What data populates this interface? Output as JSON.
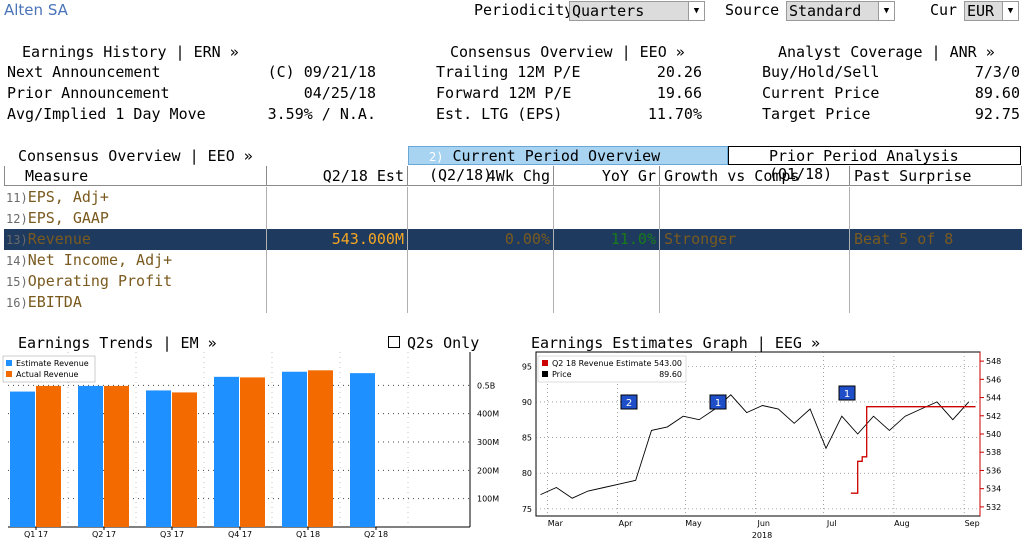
{
  "header": {
    "company": "Alten SA",
    "periodicity_label": "Periodicity",
    "periodicity_value": "Quarters",
    "source_label": "Source",
    "source_value": "Standard",
    "cur_label": "Cur",
    "cur_value": "EUR"
  },
  "earnings_history": {
    "title": "Earnings History | ERN »",
    "rows": [
      {
        "label": "Next Announcement",
        "value": "(C) 09/21/18"
      },
      {
        "label": "Prior Announcement",
        "value": "04/25/18"
      },
      {
        "label": "Avg/Implied 1 Day Move",
        "value": "3.59% / N.A."
      }
    ]
  },
  "consensus_top": {
    "title": "Consensus Overview | EEO »",
    "rows": [
      {
        "label": "Trailing 12M P/E",
        "value": "20.26"
      },
      {
        "label": "Forward 12M P/E",
        "value": "19.66"
      },
      {
        "label": "Est. LTG (EPS)",
        "value": "11.70%"
      }
    ]
  },
  "analyst": {
    "title": "Analyst Coverage | ANR »",
    "rows": [
      {
        "label": "Buy/Hold/Sell",
        "value": "7/3/0"
      },
      {
        "label": "Current Price",
        "value": "89.60"
      },
      {
        "label": "Target Price",
        "value": "92.75"
      }
    ]
  },
  "tabs": {
    "left_title": "Consensus Overview | EEO »",
    "current_num": "2)",
    "current_label": "Current Period Overview (Q2/18)",
    "prior_label": "Prior Period Analysis (Q1/18)"
  },
  "table": {
    "headers": [
      "Measure",
      "Q2/18 Est",
      "4Wk Chg",
      "YoY Gr",
      "Growth vs Comps",
      "Past Surprise"
    ],
    "rows": [
      {
        "num": "11)",
        "label": "EPS, Adj+",
        "est": "",
        "chg": "",
        "yoy": "",
        "comps": "",
        "surprise": ""
      },
      {
        "num": "12)",
        "label": "EPS, GAAP",
        "est": "",
        "chg": "",
        "yoy": "",
        "comps": "",
        "surprise": ""
      },
      {
        "num": "13)",
        "label": "Revenue",
        "est": "543.000M",
        "chg": "0.00%",
        "yoy": "11.0%",
        "comps": "Stronger",
        "surprise": "Beat 5 of 8"
      },
      {
        "num": "14)",
        "label": "Net Income, Adj+",
        "est": "",
        "chg": "",
        "yoy": "",
        "comps": "",
        "surprise": ""
      },
      {
        "num": "15)",
        "label": "Operating Profit",
        "est": "",
        "chg": "",
        "yoy": "",
        "comps": "",
        "surprise": ""
      },
      {
        "num": "16)",
        "label": "EBITDA",
        "est": "",
        "chg": "",
        "yoy": "",
        "comps": "",
        "surprise": ""
      }
    ]
  },
  "trends": {
    "title": "Earnings Trends | EM »",
    "q2_only_label": "Q2s Only",
    "legend": [
      "Estimate Revenue",
      "Actual Revenue"
    ]
  },
  "graph": {
    "title": "Earnings Estimates Graph | EEG »",
    "legend": [
      {
        "label": "Q2 18 Revenue Estimate",
        "value": "543.00"
      },
      {
        "label": "Price",
        "value": "89.60"
      }
    ],
    "year_label": "2018",
    "badges": [
      "2",
      "1",
      "1"
    ]
  },
  "colors": {
    "estimate": "#1e90ff",
    "actual": "#f26a00",
    "price_line": "#000000",
    "revenue_line": "#cc0000",
    "badge": "#1f4fc8",
    "selected_row": "#1e3a5f",
    "accent_blue": "#4a74b8"
  },
  "chart_data": [
    {
      "type": "bar",
      "title": "Earnings Trends",
      "categories": [
        "Q1 17",
        "Q2 17",
        "Q3 17",
        "Q4 17",
        "Q1 18",
        "Q2 18"
      ],
      "series": [
        {
          "name": "Estimate Revenue",
          "values": [
            478,
            498,
            482,
            530,
            548,
            543
          ]
        },
        {
          "name": "Actual Revenue",
          "values": [
            498,
            498,
            475,
            528,
            553,
            null
          ]
        }
      ],
      "ytick_labels": [
        "100M",
        "200M",
        "300M",
        "400M",
        "0.5B"
      ],
      "ylim": [
        0,
        600
      ],
      "grid": true,
      "legend_position": "top-left"
    },
    {
      "type": "line",
      "title": "Earnings Estimates Graph",
      "x_labels": [
        "Mar",
        "Apr",
        "May",
        "Jun",
        "Jul",
        "Aug",
        "Sep"
      ],
      "series": [
        {
          "name": "Price",
          "axis": "left",
          "x": [
            "2018-02-26",
            "2018-03-05",
            "2018-03-12",
            "2018-03-19",
            "2018-03-26",
            "2018-04-02",
            "2018-04-09",
            "2018-04-16",
            "2018-04-23",
            "2018-04-30",
            "2018-05-07",
            "2018-05-14",
            "2018-05-21",
            "2018-05-28",
            "2018-06-04",
            "2018-06-11",
            "2018-06-18",
            "2018-06-25",
            "2018-07-02",
            "2018-07-09",
            "2018-07-16",
            "2018-07-23",
            "2018-07-30",
            "2018-08-06",
            "2018-08-13",
            "2018-08-20",
            "2018-08-27",
            "2018-09-03"
          ],
          "values": [
            77,
            78,
            76.5,
            77.5,
            78,
            78.5,
            79,
            86,
            86.5,
            88,
            87.5,
            89,
            91,
            88.5,
            89.5,
            89,
            87,
            89,
            83.5,
            88,
            85.5,
            88,
            86,
            88,
            89,
            90,
            87.5,
            90
          ]
        },
        {
          "name": "Q2 18 Revenue Estimate",
          "axis": "right",
          "x": [
            "2018-07-13",
            "2018-07-16",
            "2018-07-18",
            "2018-07-20",
            "2018-09-06"
          ],
          "values": [
            533.5,
            537,
            537.5,
            543,
            543
          ]
        }
      ],
      "y_left_ticks": [
        75,
        80,
        85,
        90,
        95
      ],
      "y_right_ticks": [
        532,
        534,
        536,
        538,
        540,
        542,
        544,
        546,
        548
      ],
      "grid": true,
      "legend_position": "top-left"
    }
  ]
}
